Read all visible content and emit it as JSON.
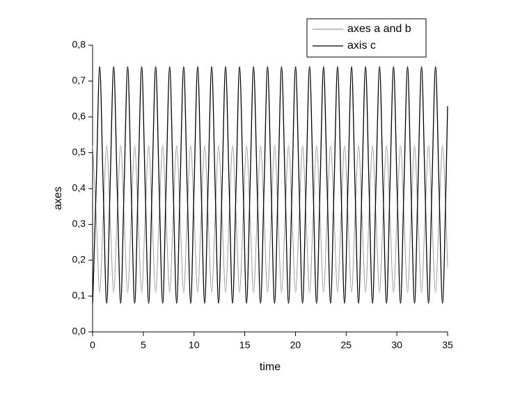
{
  "chart_data": {
    "type": "line",
    "x_label": "time",
    "y_label": "axes",
    "x": [
      0.01,
      0.36,
      0.7,
      1.04,
      1.39,
      1.73,
      2.08,
      2.42,
      2.77,
      3.11,
      3.46,
      3.8,
      4.15,
      4.49,
      4.84,
      5.18,
      5.53,
      5.87,
      6.22,
      6.56,
      6.91,
      7.25,
      7.6,
      7.94,
      8.29,
      8.63,
      8.98,
      9.32,
      9.67,
      10.01,
      10.36,
      10.7,
      11.05,
      11.39,
      11.74,
      12.08,
      12.42,
      12.77,
      13.11,
      13.46,
      13.8,
      14.15,
      14.49,
      14.84,
      15.18,
      15.53,
      15.87,
      16.22,
      16.56,
      16.91,
      17.25,
      17.6,
      17.94,
      18.29,
      18.63,
      18.98,
      19.32,
      19.67,
      20.01,
      20.36,
      20.7,
      21.05,
      21.39,
      21.74,
      22.08,
      22.43,
      22.77,
      23.12,
      23.46,
      23.81,
      24.15,
      24.49,
      24.84,
      25.18,
      25.53,
      25.87,
      26.22,
      26.56,
      26.91,
      27.25,
      27.6,
      27.94,
      28.29,
      28.63,
      28.98,
      29.32,
      29.67,
      30.01,
      30.36,
      30.7,
      31.05,
      31.39,
      31.74,
      32.08,
      32.43,
      32.77,
      33.12,
      33.46,
      33.81,
      34.15,
      34.5,
      34.84,
      35
    ],
    "series": [
      {
        "name": "axes a and b",
        "color": "#9a9a9a",
        "values": [
          0.52,
          0.32,
          0.11,
          0.32,
          0.52,
          0.32,
          0.11,
          0.32,
          0.52,
          0.32,
          0.11,
          0.32,
          0.52,
          0.32,
          0.11,
          0.32,
          0.52,
          0.32,
          0.11,
          0.32,
          0.52,
          0.32,
          0.11,
          0.32,
          0.52,
          0.32,
          0.11,
          0.32,
          0.52,
          0.32,
          0.11,
          0.32,
          0.52,
          0.32,
          0.11,
          0.32,
          0.52,
          0.32,
          0.11,
          0.32,
          0.52,
          0.32,
          0.11,
          0.32,
          0.52,
          0.32,
          0.11,
          0.32,
          0.52,
          0.32,
          0.11,
          0.32,
          0.52,
          0.32,
          0.11,
          0.32,
          0.52,
          0.32,
          0.11,
          0.32,
          0.52,
          0.32,
          0.11,
          0.32,
          0.52,
          0.32,
          0.11,
          0.32,
          0.52,
          0.32,
          0.11,
          0.32,
          0.52,
          0.32,
          0.11,
          0.32,
          0.52,
          0.32,
          0.11,
          0.32,
          0.52,
          0.32,
          0.11,
          0.32,
          0.52,
          0.32,
          0.11,
          0.32,
          0.52,
          0.32,
          0.11,
          0.32,
          0.52,
          0.32,
          0.11,
          0.32,
          0.52,
          0.32,
          0.11,
          0.32,
          0.52,
          0.32,
          0.18
        ]
      },
      {
        "name": "axis c",
        "color": "#000000",
        "values": [
          0.08,
          0.41,
          0.74,
          0.41,
          0.08,
          0.41,
          0.74,
          0.41,
          0.08,
          0.41,
          0.74,
          0.41,
          0.08,
          0.41,
          0.74,
          0.41,
          0.08,
          0.41,
          0.74,
          0.41,
          0.08,
          0.41,
          0.74,
          0.41,
          0.08,
          0.41,
          0.74,
          0.41,
          0.08,
          0.41,
          0.74,
          0.41,
          0.08,
          0.41,
          0.74,
          0.41,
          0.08,
          0.41,
          0.74,
          0.41,
          0.08,
          0.41,
          0.74,
          0.41,
          0.08,
          0.41,
          0.74,
          0.41,
          0.08,
          0.41,
          0.74,
          0.41,
          0.08,
          0.41,
          0.74,
          0.41,
          0.08,
          0.41,
          0.74,
          0.41,
          0.08,
          0.41,
          0.74,
          0.41,
          0.08,
          0.41,
          0.74,
          0.41,
          0.08,
          0.41,
          0.74,
          0.41,
          0.08,
          0.41,
          0.74,
          0.41,
          0.08,
          0.41,
          0.74,
          0.41,
          0.08,
          0.41,
          0.74,
          0.41,
          0.08,
          0.41,
          0.74,
          0.41,
          0.08,
          0.41,
          0.74,
          0.41,
          0.08,
          0.41,
          0.74,
          0.41,
          0.08,
          0.41,
          0.74,
          0.41,
          0.08,
          0.41,
          0.63
        ]
      }
    ],
    "xlim": [
      0,
      35
    ],
    "xticks": [
      0,
      5,
      10,
      15,
      20,
      25,
      30,
      35
    ],
    "ylim": [
      0,
      0.8
    ],
    "yticks": [
      {
        "value": 0,
        "label": "0,0"
      },
      {
        "value": 0.1,
        "label": "0,1"
      },
      {
        "value": 0.2,
        "label": "0,2"
      },
      {
        "value": 0.3,
        "label": "0,3"
      },
      {
        "value": 0.4,
        "label": "0,4"
      },
      {
        "value": 0.5,
        "label": "0,5"
      },
      {
        "value": 0.6,
        "label": "0,6"
      },
      {
        "value": 0.7,
        "label": "0,7"
      },
      {
        "value": 0.8,
        "label": "0,8"
      }
    ],
    "grid": false,
    "legend": "top-right"
  }
}
